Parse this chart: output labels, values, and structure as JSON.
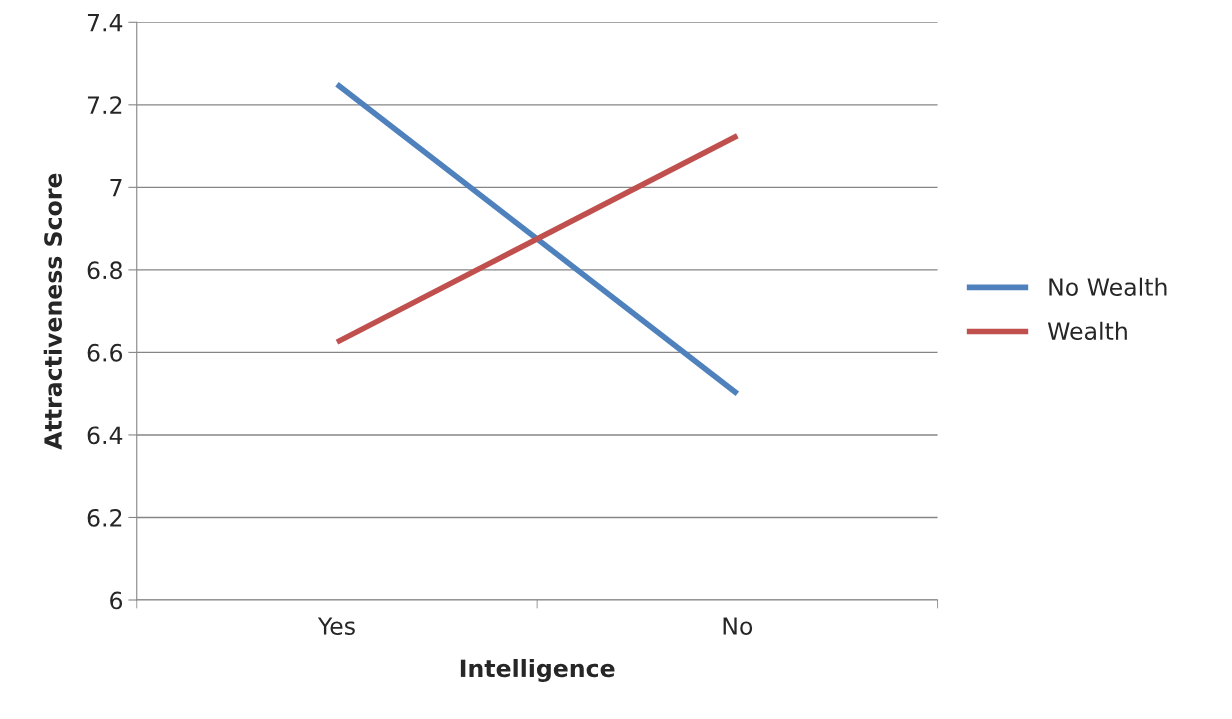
{
  "chart_data": {
    "type": "line",
    "xlabel": "Intelligence",
    "ylabel": "Attractiveness Score",
    "categories": [
      "Yes",
      "No"
    ],
    "series": [
      {
        "name": "No Wealth",
        "color": "#4f81bd",
        "values": [
          7.25,
          6.5
        ]
      },
      {
        "name": "Wealth",
        "color": "#c0504d",
        "values": [
          6.625,
          7.125
        ]
      }
    ],
    "ylim": [
      6,
      7.4
    ],
    "yticks": [
      6,
      6.2,
      6.4,
      6.6,
      6.8,
      7,
      7.2,
      7.4
    ],
    "grid": "y",
    "legend": "right",
    "marker": "none",
    "line_style": "solid"
  }
}
